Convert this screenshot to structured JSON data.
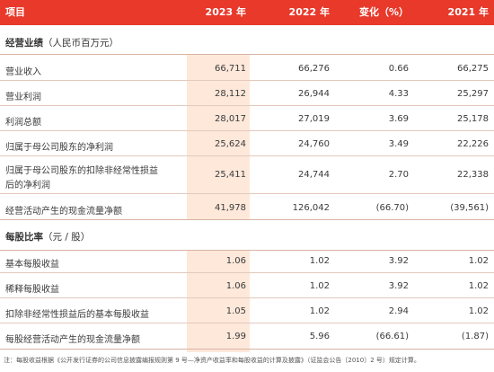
{
  "header": {
    "item": "项目",
    "y2023": "2023 年",
    "y2022": "2022 年",
    "change": "变化（%）",
    "y2021": "2021 年"
  },
  "section1": {
    "title": "经营业绩",
    "unit": "（人民币百万元）"
  },
  "rows1": [
    {
      "label": "营业收入",
      "v2023": "66,711",
      "v2022": "66,276",
      "change": "0.66",
      "v2021": "66,275"
    },
    {
      "label": "营业利润",
      "v2023": "28,112",
      "v2022": "26,944",
      "change": "4.33",
      "v2021": "25,297"
    },
    {
      "label": "利润总额",
      "v2023": "28,017",
      "v2022": "27,019",
      "change": "3.69",
      "v2021": "25,178"
    },
    {
      "label": "归属于母公司股东的净利润",
      "v2023": "25,624",
      "v2022": "24,760",
      "change": "3.49",
      "v2021": "22,226"
    },
    {
      "label": "归属于母公司股东的扣除非经常性损益",
      "label2": "后的净利润",
      "v2023": "25,411",
      "v2022": "24,744",
      "change": "2.70",
      "v2021": "22,338"
    },
    {
      "label": "经营活动产生的现金流量净额",
      "v2023": "41,978",
      "v2022": "126,042",
      "change": "(66.70)",
      "v2021": "(39,561)"
    }
  ],
  "section2": {
    "title": "每股比率",
    "unit": "（元 / 股）"
  },
  "rows2": [
    {
      "label": "基本每股收益",
      "v2023": "1.06",
      "v2022": "1.02",
      "change": "3.92",
      "v2021": "1.02"
    },
    {
      "label": "稀释每股收益",
      "v2023": "1.06",
      "v2022": "1.02",
      "change": "3.92",
      "v2021": "1.02"
    },
    {
      "label": "扣除非经常性损益后的基本每股收益",
      "v2023": "1.05",
      "v2022": "1.02",
      "change": "2.94",
      "v2021": "1.02"
    },
    {
      "label": "每股经营活动产生的现金流量净额",
      "v2023": "1.99",
      "v2022": "5.96",
      "change": "(66.61)",
      "v2021": "(1.87)"
    }
  ],
  "note": "注：每股收益根据《公开发行证券的公司信息披露编报规则第 9 号—净资产收益率和每股收益的计算及披露》（证监会公告〔2010〕2 号）规定计算。",
  "colors": {
    "header": "#e8392b",
    "highlight": "#fde8da"
  }
}
